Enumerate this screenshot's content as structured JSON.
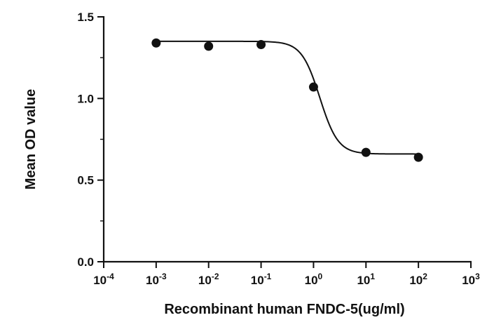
{
  "chart_data": {
    "type": "scatter",
    "xlabel": "Recombinant human FNDC-5(ug/ml)",
    "ylabel": "Mean OD value",
    "x_scale": "log10",
    "xlim": [
      0.0001,
      1000
    ],
    "ylim": [
      0.0,
      1.5
    ],
    "x_ticks": [
      0.0001,
      0.001,
      0.01,
      0.1,
      1,
      10,
      100,
      1000
    ],
    "x_tick_bases": [
      "10",
      "10",
      "10",
      "10",
      "10",
      "10",
      "10",
      "10"
    ],
    "x_tick_exponents": [
      "-4",
      "-3",
      "-2",
      "-1",
      "0",
      "1",
      "2",
      "3"
    ],
    "y_ticks": [
      0.0,
      0.5,
      1.0,
      1.5
    ],
    "y_tick_labels": [
      "0.0",
      "0.5",
      "1.0",
      "1.5"
    ],
    "grid": false,
    "legend": "none",
    "series": [
      {
        "x": [
          0.001,
          0.01,
          0.1,
          1,
          10,
          100
        ],
        "y": [
          1.34,
          1.32,
          1.33,
          1.07,
          0.67,
          0.64
        ],
        "marker": "filled-circle",
        "color": "#111111"
      }
    ],
    "fit_curve": {
      "type": "sigmoidal-dose-response",
      "top": 1.35,
      "bottom": 0.66,
      "log_ec50": 0.12,
      "hill_slope": -2.5,
      "x_range": [
        0.001,
        100
      ],
      "color": "#111111"
    }
  }
}
